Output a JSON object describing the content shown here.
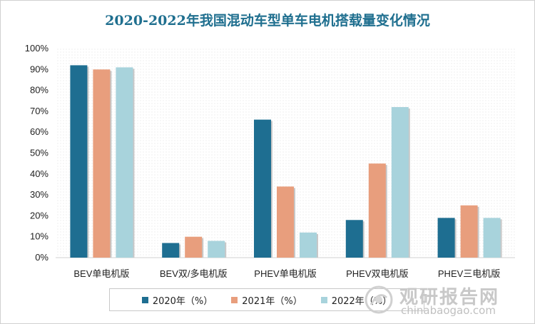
{
  "chart_data": {
    "type": "bar",
    "title": "2020-2022年我国混动车型单车电机搭载量变化情况",
    "categories": [
      "BEV单电机版",
      "BEV双/多电机版",
      "PHEV单电机版",
      "PHEV双电机版",
      "PHEV三电机版"
    ],
    "series": [
      {
        "name": "2020年（%）",
        "values": [
          92,
          7,
          66,
          18,
          19
        ],
        "color": "#1e6e91"
      },
      {
        "name": "2021年（%）",
        "values": [
          90,
          10,
          34,
          45,
          25
        ],
        "color": "#e89e7d"
      },
      {
        "name": "2022年（%）",
        "values": [
          91,
          8,
          12,
          72,
          19
        ],
        "color": "#a8d3dc"
      }
    ],
    "ylim": [
      0,
      100
    ],
    "yticks": [
      "0%",
      "10%",
      "20%",
      "30%",
      "40%",
      "50%",
      "60%",
      "70%",
      "80%",
      "90%",
      "100%"
    ],
    "grid": false,
    "legend_position": "bottom"
  },
  "watermark": {
    "main": "观研报告网",
    "sub": "chinabaogao.com"
  }
}
